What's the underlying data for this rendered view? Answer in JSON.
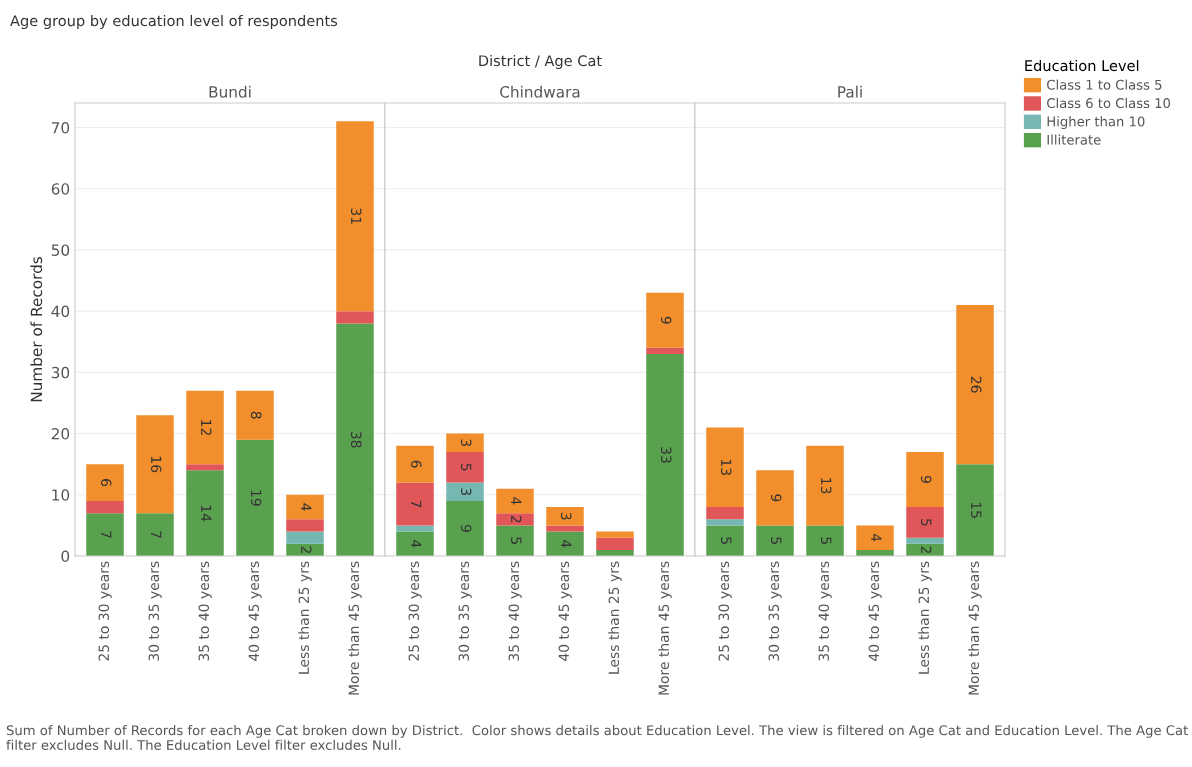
{
  "chart_data": [
    {
      "type": "bar",
      "stacked": true,
      "title": "Bundi",
      "ylabel": "Number of Records",
      "legend": "right",
      "legend_title": "Education Level",
      "grid": "y",
      "annotations": [
        "Age group by education level of respondents",
        "District / Age Cat",
        "Sum of Number of Records for each Age Cat broken down by District.  Color shows details about Education Level. The view is filtered on Age Cat and Education Level. The Age Cat filter excludes Null. The Education Level filter excludes Null."
      ],
      "categories": [
        "25 to 30 years",
        "30 to 35 years",
        "35 to 40 years",
        "40 to 45 years",
        "Less than 25 yrs",
        "More than 45 years"
      ],
      "ylim": [
        0,
        74
      ],
      "yticks": [
        0,
        10,
        20,
        30,
        40,
        50,
        60,
        70
      ],
      "series": [
        {
          "name": "Illiterate",
          "color": "#59a14f",
          "values": [
            7,
            7,
            14,
            19,
            2,
            38
          ],
          "value_labels": [
            "7",
            "7",
            "14",
            "19",
            "2",
            "38"
          ]
        },
        {
          "name": "Higher than 10",
          "color": "#76b7b2",
          "values": [
            null,
            null,
            null,
            null,
            2,
            null
          ],
          "value_labels": [
            null,
            null,
            null,
            null,
            null,
            null
          ]
        },
        {
          "name": "Class 6 to Class 10",
          "color": "#e15759",
          "values": [
            2,
            null,
            1,
            null,
            2,
            2
          ],
          "value_labels": [
            null,
            null,
            null,
            null,
            null,
            null
          ]
        },
        {
          "name": "Class 1 to Class 5",
          "color": "#f28e2b",
          "values": [
            6,
            16,
            12,
            8,
            4,
            31
          ],
          "value_labels": [
            "6",
            "16",
            "12",
            "8",
            "4",
            "31"
          ]
        }
      ]
    },
    {
      "type": "bar",
      "stacked": true,
      "title": "Chindwara",
      "grid": "y",
      "tick_labels": "x",
      "categories": [
        "25 to 30 years",
        "30 to 35 years",
        "35 to 40 years",
        "40 to 45 years",
        "Less than 25 yrs",
        "More than 45 years"
      ],
      "ylim": [
        0,
        74
      ],
      "yticks": [
        0,
        10,
        20,
        30,
        40,
        50,
        60,
        70
      ],
      "series": [
        {
          "color": "#59a14f",
          "values": [
            4,
            9,
            5,
            4,
            1,
            33
          ],
          "value_labels": [
            "4",
            "9",
            "5",
            "4",
            null,
            "33"
          ]
        },
        {
          "color": "#76b7b2",
          "values": [
            1,
            3,
            null,
            null,
            null,
            null
          ],
          "value_labels": [
            null,
            "3",
            null,
            null,
            null,
            null
          ]
        },
        {
          "color": "#e15759",
          "values": [
            7,
            5,
            2,
            1,
            2,
            1
          ],
          "value_labels": [
            "7",
            "5",
            "2",
            null,
            null,
            null
          ]
        },
        {
          "color": "#f28e2b",
          "values": [
            6,
            3,
            4,
            3,
            1,
            9
          ],
          "value_labels": [
            "6",
            "3",
            "4",
            "3",
            null,
            "9"
          ]
        }
      ]
    },
    {
      "type": "bar",
      "stacked": true,
      "title": "Pali",
      "grid": "y",
      "tick_labels": "x",
      "categories": [
        "25 to 30 years",
        "30 to 35 years",
        "35 to 40 years",
        "40 to 45 years",
        "Less than 25 yrs",
        "More than 45 years"
      ],
      "ylim": [
        0,
        74
      ],
      "yticks": [
        0,
        10,
        20,
        30,
        40,
        50,
        60,
        70
      ],
      "series": [
        {
          "color": "#59a14f",
          "values": [
            5,
            5,
            5,
            1,
            2,
            15
          ],
          "value_labels": [
            "5",
            "5",
            "5",
            null,
            "2",
            "15"
          ]
        },
        {
          "color": "#76b7b2",
          "values": [
            1,
            null,
            null,
            null,
            1,
            null
          ],
          "value_labels": [
            null,
            null,
            null,
            null,
            null,
            null
          ]
        },
        {
          "color": "#e15759",
          "values": [
            2,
            null,
            null,
            null,
            5,
            null
          ],
          "value_labels": [
            null,
            null,
            null,
            null,
            "5",
            null
          ]
        },
        {
          "color": "#f28e2b",
          "values": [
            13,
            9,
            13,
            4,
            9,
            26
          ],
          "value_labels": [
            "13",
            "9",
            "13",
            "4",
            "9",
            "26"
          ]
        }
      ]
    }
  ]
}
